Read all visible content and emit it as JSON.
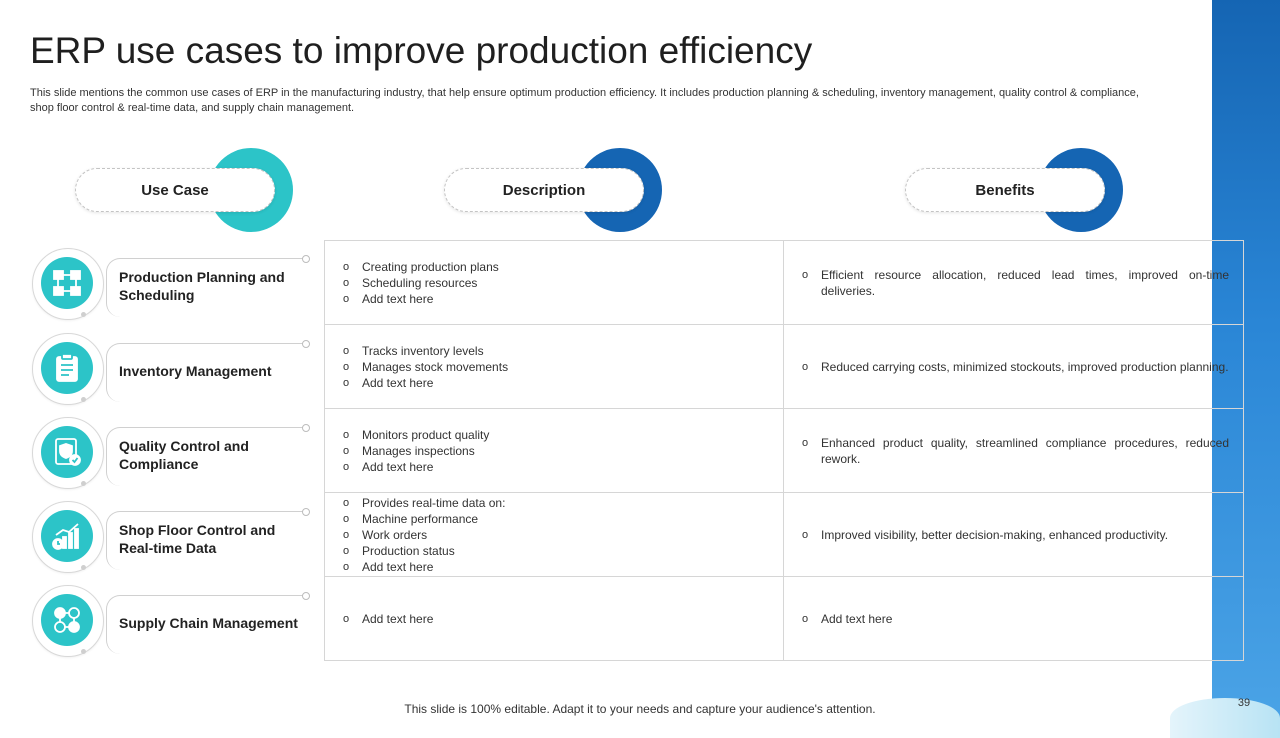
{
  "slide": {
    "title": "ERP use cases to improve production efficiency",
    "subtitle": "This slide mentions the common use cases of ERP in the manufacturing industry, that help ensure optimum production efficiency. It includes production planning & scheduling, inventory management, quality control & compliance, shop floor control & real-time data, and supply chain management.",
    "footer": "This slide is 100% editable. Adapt it to your needs and capture your audience's attention.",
    "page_number": "39"
  },
  "headers": {
    "use_case": "Use Case",
    "description": "Description",
    "benefits": "Benefits"
  },
  "colors": {
    "teal": "#2cc4c8",
    "blue": "#1565b3"
  },
  "bullet_glyph": "o",
  "rows": [
    {
      "use_case": "Production Planning and Scheduling",
      "icon": "production-planning-icon",
      "description": [
        "Creating production plans",
        "Scheduling resources",
        "Add text here"
      ],
      "benefit": "Efficient resource allocation, reduced lead times, improved on-time deliveries."
    },
    {
      "use_case": "Inventory Management",
      "icon": "inventory-clipboard-icon",
      "description": [
        "Tracks inventory levels",
        "Manages stock movements",
        "Add text here"
      ],
      "benefit": "Reduced carrying costs, minimized stockouts, improved production planning."
    },
    {
      "use_case": "Quality Control and Compliance",
      "icon": "quality-shield-icon",
      "description": [
        "Monitors product quality",
        "Manages inspections",
        "Add text here"
      ],
      "benefit": "Enhanced product quality, streamlined compliance procedures, reduced rework."
    },
    {
      "use_case": "Shop Floor Control and Real-time Data",
      "icon": "chart-clock-icon",
      "description": [
        "Provides real-time data on:",
        "Machine performance",
        "Work orders",
        "Production status",
        "Add text here"
      ],
      "benefit": "Improved visibility, better decision-making, enhanced productivity."
    },
    {
      "use_case": "Supply Chain Management",
      "icon": "supply-chain-network-icon",
      "description": [
        "Add text here"
      ],
      "benefit": "Add text here"
    }
  ]
}
